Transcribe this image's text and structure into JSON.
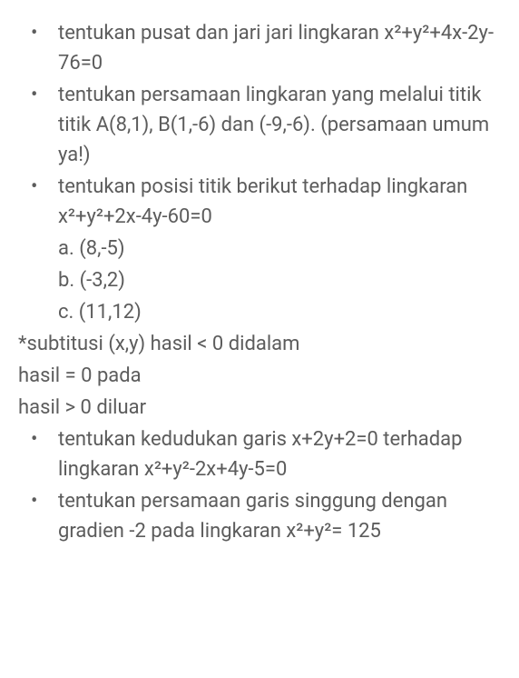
{
  "items": [
    {
      "kind": "bullet",
      "text": "tentukan pusat dan jari jari lingkaran x²+y²+4x-2y-76=0"
    },
    {
      "kind": "bullet",
      "text": "tentukan persamaan lingkaran yang melalui titik titik A(8,1), B(1,-6) dan (-9,-6). (persamaan umum ya!)"
    },
    {
      "kind": "bullet",
      "text": "tentukan posisi titik berikut terhadap lingkaran x²+y²+2x-4y-60=0"
    },
    {
      "kind": "sub",
      "text": "a. (8,-5)"
    },
    {
      "kind": "sub",
      "text": "b. (-3,2)"
    },
    {
      "kind": "sub",
      "text": "c. (11,12)"
    },
    {
      "kind": "note",
      "text": "*subtitusi (x,y) hasil < 0 didalam"
    },
    {
      "kind": "note",
      "text": "hasil = 0 pada"
    },
    {
      "kind": "note",
      "text": "hasil > 0 diluar"
    },
    {
      "kind": "bullet",
      "text": "tentukan kedudukan garis x+2y+2=0 terhadap lingkaran x²+y²-2x+4y-5=0"
    },
    {
      "kind": "bullet",
      "text": "tentukan persamaan garis singgung dengan gradien -2 pada lingkaran x²+y²= 125"
    }
  ]
}
